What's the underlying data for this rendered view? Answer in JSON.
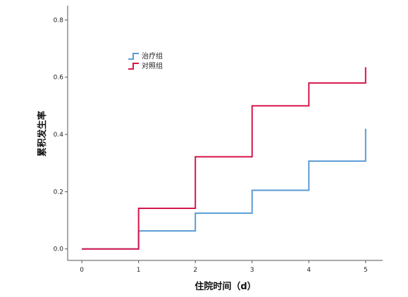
{
  "chart_data": {
    "type": "line",
    "step": true,
    "xlabel": "住院时间（d）",
    "ylabel": "累积发生率",
    "xlim": [
      -0.25,
      5.3
    ],
    "ylim": [
      -0.04,
      0.85
    ],
    "x_ticks": [
      "0",
      "1",
      "2",
      "3",
      "4",
      "5"
    ],
    "y_ticks": [
      "0.0",
      "0.2",
      "0.4",
      "0.6",
      "0.8"
    ],
    "grid": false,
    "legend_position": "top-left",
    "series": [
      {
        "name": "治疗组",
        "color": "#5b9bd5",
        "x": [
          0,
          1,
          2,
          3,
          4,
          5
        ],
        "y": [
          0.0,
          0.063,
          0.125,
          0.205,
          0.307,
          0.42
        ]
      },
      {
        "name": "对照组",
        "color": "#d6164a",
        "x": [
          0,
          1,
          2,
          3,
          4,
          5
        ],
        "y": [
          0.0,
          0.142,
          0.322,
          0.5,
          0.58,
          0.635
        ]
      }
    ]
  }
}
